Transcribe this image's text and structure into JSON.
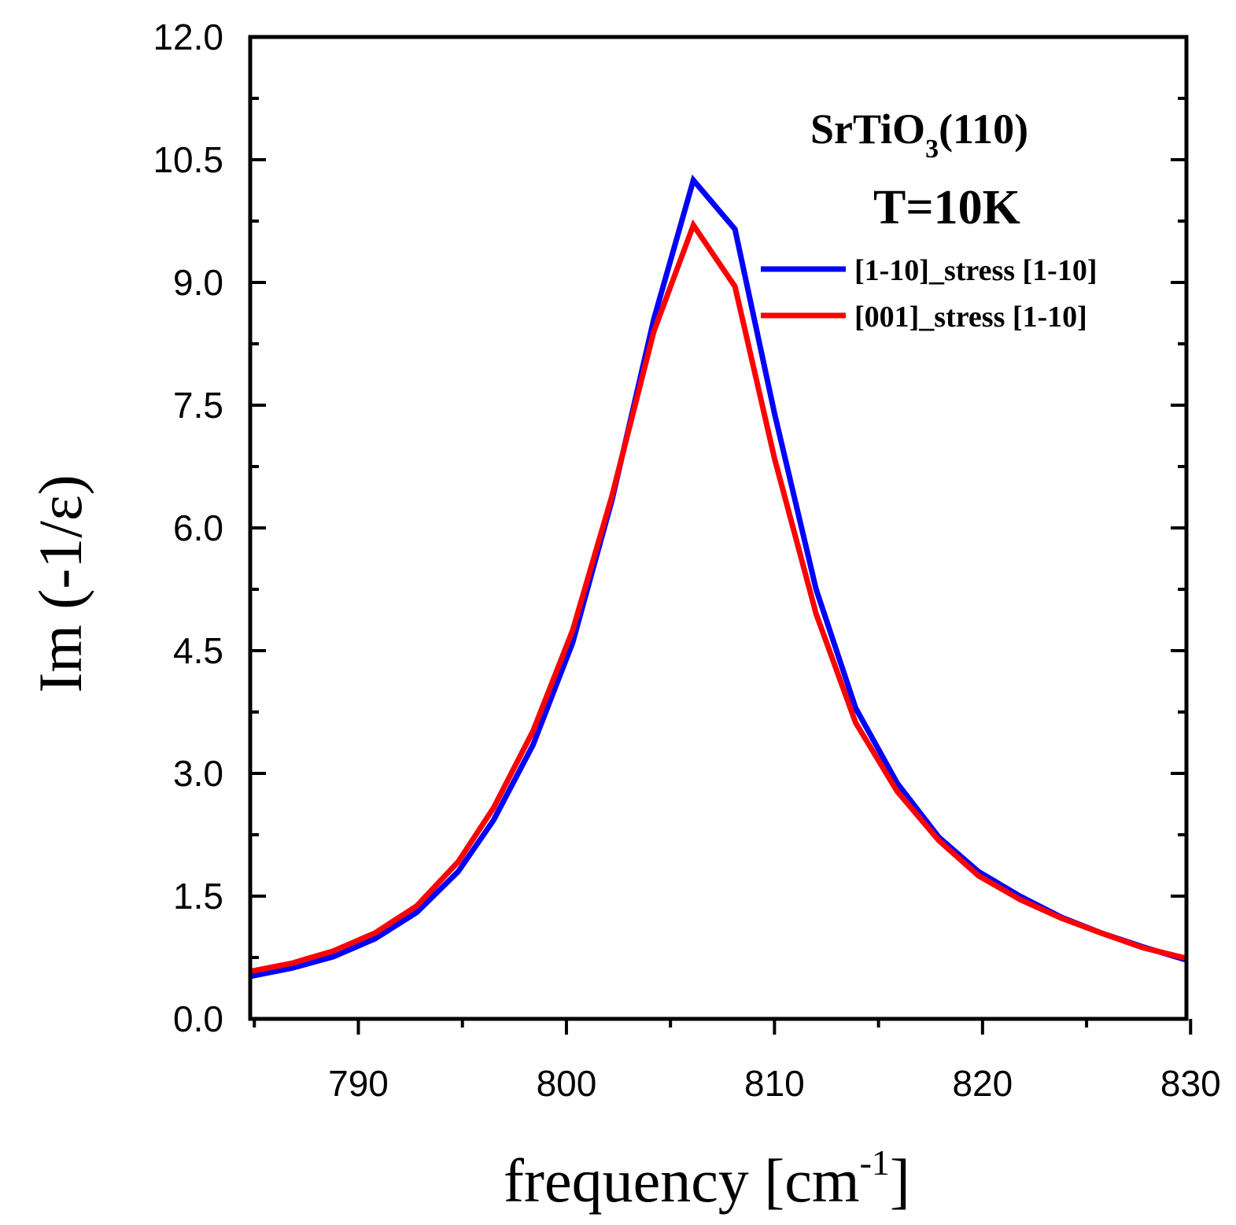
{
  "chart_data": {
    "type": "line",
    "title": "",
    "xlabel": "frequency [cm-1]",
    "xlabel_parts": {
      "main": "frequency [cm",
      "sup": "-1",
      "close": "]"
    },
    "ylabel": "Im (-1/ε)",
    "xlim": [
      784.8,
      829.8
    ],
    "ylim": [
      0.0,
      12.0
    ],
    "xticks": [
      790,
      800,
      810,
      820,
      830
    ],
    "xtick_labels": [
      "790",
      "800",
      "810",
      "820",
      "830"
    ],
    "yticks": [
      0,
      1.5,
      3,
      4.5,
      6,
      7.5,
      9,
      10.5,
      12
    ],
    "ytick_labels": [
      "0.0",
      "1.5",
      "3.0",
      "4.5",
      "6.0",
      "7.5",
      "9.0",
      "10.5",
      "12.0"
    ],
    "annotation": {
      "material_main": "SrTiO",
      "material_sub": "3",
      "material_rest": "(110)",
      "temperature": "T=10K"
    },
    "legend_position": "top-right",
    "series": [
      {
        "name": "[1-10]_stress [1-10]",
        "color": "#0000ff",
        "x": [
          784.8,
          786.8,
          788.8,
          790.8,
          792.8,
          794.8,
          796.5,
          798.4,
          800.3,
          802.2,
          804.2,
          806.1,
          808.1,
          810.0,
          812.0,
          813.9,
          815.9,
          817.9,
          819.8,
          821.8,
          823.8,
          825.7,
          827.7,
          829.8
        ],
        "values": [
          0.52,
          0.62,
          0.76,
          0.98,
          1.3,
          1.8,
          2.43,
          3.35,
          4.6,
          6.35,
          8.55,
          10.25,
          9.65,
          7.4,
          5.25,
          3.8,
          2.88,
          2.22,
          1.8,
          1.5,
          1.24,
          1.05,
          0.88,
          0.72
        ]
      },
      {
        "name": "[001]_stress [1-10]",
        "color": "#ff0000",
        "x": [
          784.8,
          786.8,
          788.8,
          790.8,
          792.8,
          794.8,
          796.5,
          798.4,
          800.3,
          802.2,
          804.2,
          806.1,
          808.1,
          810.0,
          812.0,
          813.9,
          815.9,
          817.9,
          819.8,
          821.8,
          823.8,
          825.7,
          827.7,
          829.8
        ],
        "values": [
          0.58,
          0.68,
          0.83,
          1.05,
          1.38,
          1.92,
          2.58,
          3.52,
          4.75,
          6.4,
          8.4,
          9.7,
          8.95,
          6.85,
          4.95,
          3.62,
          2.78,
          2.18,
          1.75,
          1.46,
          1.23,
          1.05,
          0.87,
          0.74
        ]
      }
    ]
  }
}
